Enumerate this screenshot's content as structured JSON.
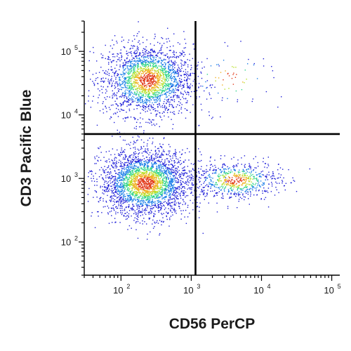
{
  "chart_data": {
    "type": "scatter",
    "title": "",
    "xlabel": "CD56 PerCP",
    "ylabel": "CD3 Pacific Blue",
    "x_scale": "log",
    "y_scale": "log",
    "xlim": [
      30,
      130000
    ],
    "ylim": [
      30,
      300000
    ],
    "x_ticks": [
      {
        "base": "10",
        "exp": "2",
        "value": 100
      },
      {
        "base": "10",
        "exp": "3",
        "value": 1000
      },
      {
        "base": "10",
        "exp": "4",
        "value": 10000
      },
      {
        "base": "10",
        "exp": "5",
        "value": 100000
      }
    ],
    "y_ticks": [
      {
        "base": "10",
        "exp": "2",
        "value": 100
      },
      {
        "base": "10",
        "exp": "3",
        "value": 1000
      },
      {
        "base": "10",
        "exp": "4",
        "value": 10000
      },
      {
        "base": "10",
        "exp": "5",
        "value": 100000
      }
    ],
    "gates": {
      "x": 1150,
      "y": 5000
    },
    "grid": false,
    "legend": "none",
    "populations": [
      {
        "x_center": 240,
        "y_center": 36000,
        "x_spread_decades": 0.32,
        "y_spread_decades": 0.28,
        "events": 2200
      },
      {
        "x_center": 220,
        "y_center": 850,
        "x_spread_decades": 0.32,
        "y_spread_decades": 0.26,
        "events": 2800
      },
      {
        "x_center": 4200,
        "y_center": 950,
        "x_spread_decades": 0.32,
        "y_spread_decades": 0.15,
        "events": 700
      },
      {
        "x_center": 3500,
        "y_center": 38000,
        "x_spread_decades": 0.35,
        "y_spread_decades": 0.25,
        "events": 70
      }
    ],
    "density_colors": [
      "#1f1fd8",
      "#1a7ee8",
      "#2fd48a",
      "#b8e02a",
      "#f0b020",
      "#e23a1a"
    ]
  }
}
